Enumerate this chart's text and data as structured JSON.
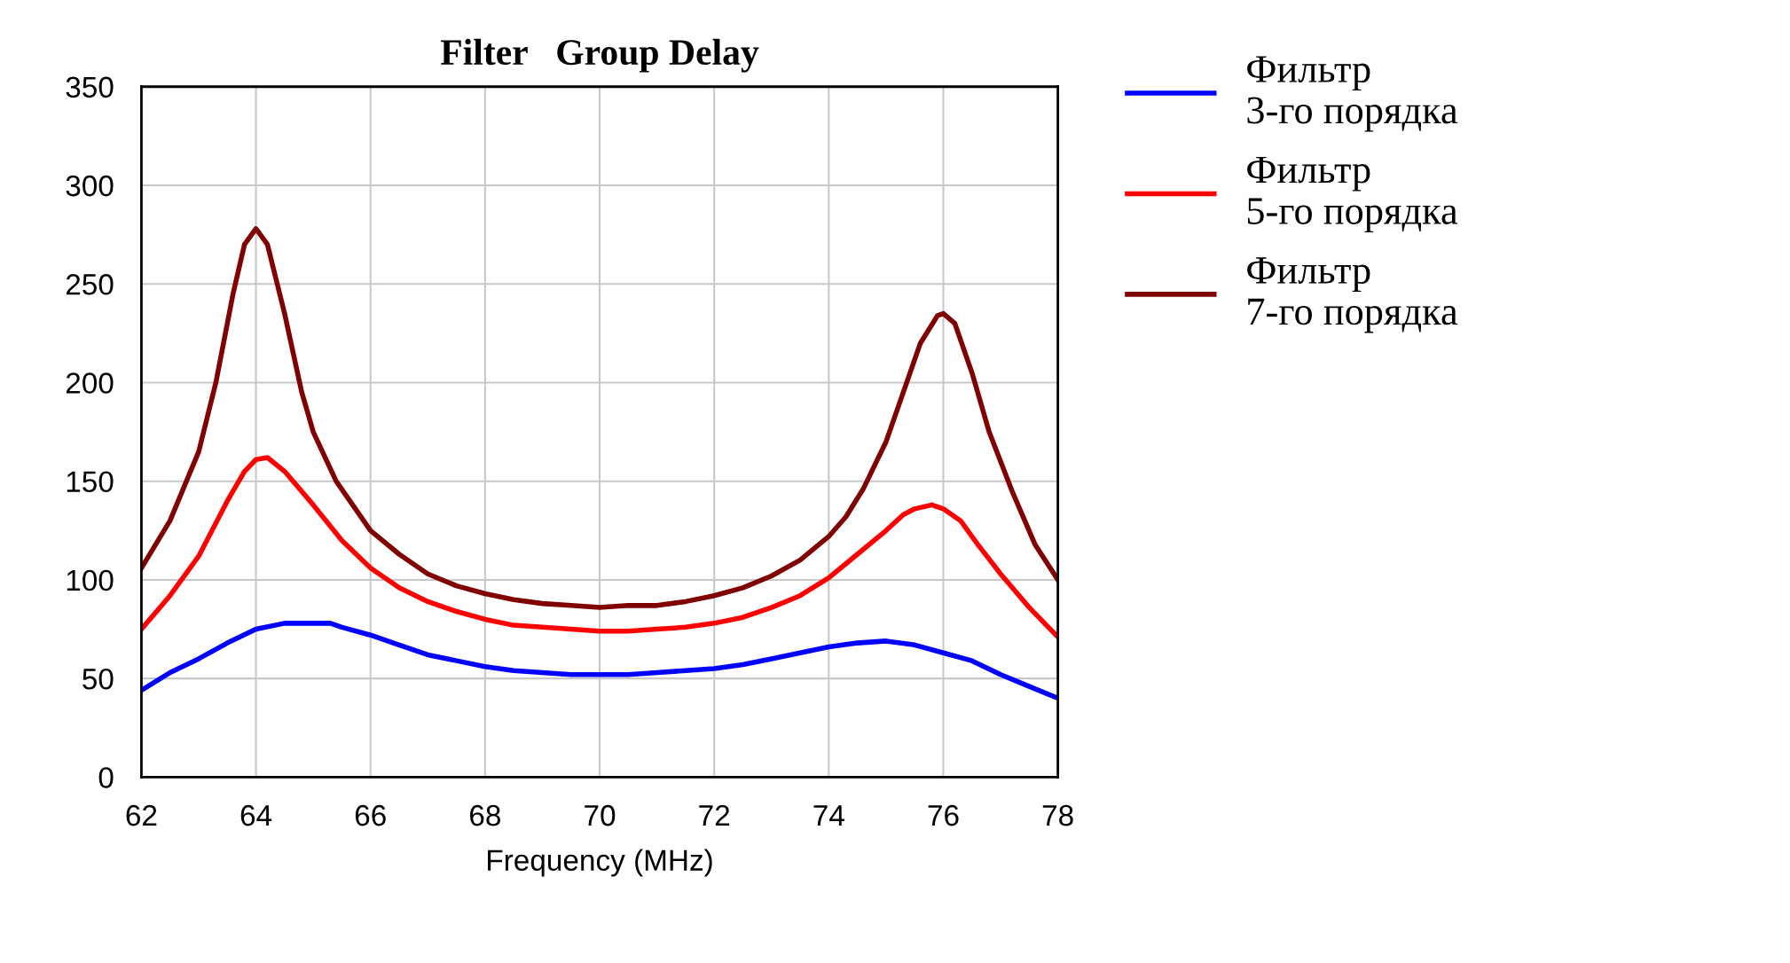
{
  "chart_data": {
    "type": "line",
    "title": "Filter   Group Delay",
    "xlabel": "Frequency (MHz)",
    "xlim": [
      62,
      78
    ],
    "xticks": [
      62,
      64,
      66,
      68,
      70,
      72,
      74,
      76,
      78
    ],
    "ylim": [
      0,
      350
    ],
    "yticks": [
      0,
      50,
      100,
      150,
      200,
      250,
      300,
      350
    ],
    "grid": true,
    "legend": "right",
    "marker": "none",
    "line_style": "solid",
    "series": [
      {
        "name": "Фильтр\n3-го порядка",
        "color": "#0000ff",
        "x": [
          62,
          62.5,
          63,
          63.5,
          64,
          64.5,
          65,
          65.3,
          65.5,
          66,
          66.5,
          67,
          67.5,
          68,
          68.5,
          69,
          69.5,
          70,
          70.5,
          71,
          71.5,
          72,
          72.5,
          73,
          73.5,
          74,
          74.5,
          75,
          75.5,
          76,
          76.5,
          77,
          77.5,
          78
        ],
        "values": [
          44,
          53,
          60,
          68,
          75,
          78,
          78,
          78,
          76,
          72,
          67,
          62,
          59,
          56,
          54,
          53,
          52,
          52,
          52,
          53,
          54,
          55,
          57,
          60,
          63,
          66,
          68,
          69,
          67,
          63,
          59,
          52,
          46,
          40
        ]
      },
      {
        "name": "Фильтр\n5-го порядка",
        "color": "#ff0000",
        "x": [
          62,
          62.5,
          63,
          63.5,
          63.8,
          64,
          64.2,
          64.5,
          65,
          65.5,
          66,
          66.5,
          67,
          67.5,
          68,
          68.5,
          69,
          69.5,
          70,
          70.5,
          71,
          71.5,
          72,
          72.5,
          73,
          73.5,
          74,
          74.5,
          75,
          75.3,
          75.5,
          75.8,
          76,
          76.3,
          76.6,
          77,
          77.5,
          78
        ],
        "values": [
          75,
          92,
          112,
          140,
          155,
          161,
          162,
          155,
          138,
          120,
          106,
          96,
          89,
          84,
          80,
          77,
          76,
          75,
          74,
          74,
          75,
          76,
          78,
          81,
          86,
          92,
          101,
          113,
          125,
          133,
          136,
          138,
          136,
          130,
          118,
          103,
          86,
          71
        ]
      },
      {
        "name": "Фильтр\n7-го порядка",
        "color": "#800000",
        "x": [
          62,
          62.5,
          63,
          63.3,
          63.6,
          63.8,
          64,
          64.2,
          64.5,
          64.8,
          65,
          65.4,
          66,
          66.5,
          67,
          67.5,
          68,
          68.5,
          69,
          69.5,
          70,
          70.5,
          71,
          71.5,
          72,
          72.5,
          73,
          73.5,
          74,
          74.3,
          74.6,
          75,
          75.3,
          75.6,
          75.9,
          76,
          76.2,
          76.5,
          76.8,
          77.2,
          77.6,
          78
        ],
        "values": [
          106,
          130,
          165,
          200,
          245,
          270,
          278,
          270,
          235,
          195,
          175,
          150,
          125,
          113,
          103,
          97,
          93,
          90,
          88,
          87,
          86,
          87,
          87,
          89,
          92,
          96,
          102,
          110,
          122,
          132,
          146,
          170,
          195,
          220,
          234,
          235,
          230,
          205,
          175,
          145,
          118,
          100
        ]
      }
    ]
  }
}
